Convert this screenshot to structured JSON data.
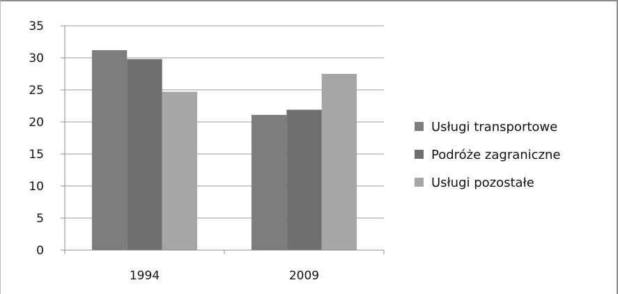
{
  "chart_data": {
    "type": "bar",
    "categories": [
      "1994",
      "2009"
    ],
    "series": [
      {
        "name": "Usługi transportowe",
        "values": [
          31.2,
          21.1
        ],
        "color": "#7d7d7d"
      },
      {
        "name": "Podróże zagraniczne",
        "values": [
          29.8,
          21.9
        ],
        "color": "#6f6f6f"
      },
      {
        "name": "Usługi pozostałe",
        "values": [
          24.7,
          27.5
        ],
        "color": "#a6a6a6"
      }
    ],
    "y_ticks": [
      "0",
      "5",
      "10",
      "15",
      "20",
      "25",
      "30",
      "35"
    ],
    "ylim": [
      0,
      35
    ],
    "title": "",
    "xlabel": "",
    "ylabel": "",
    "grid": true,
    "legend_position": "right"
  }
}
